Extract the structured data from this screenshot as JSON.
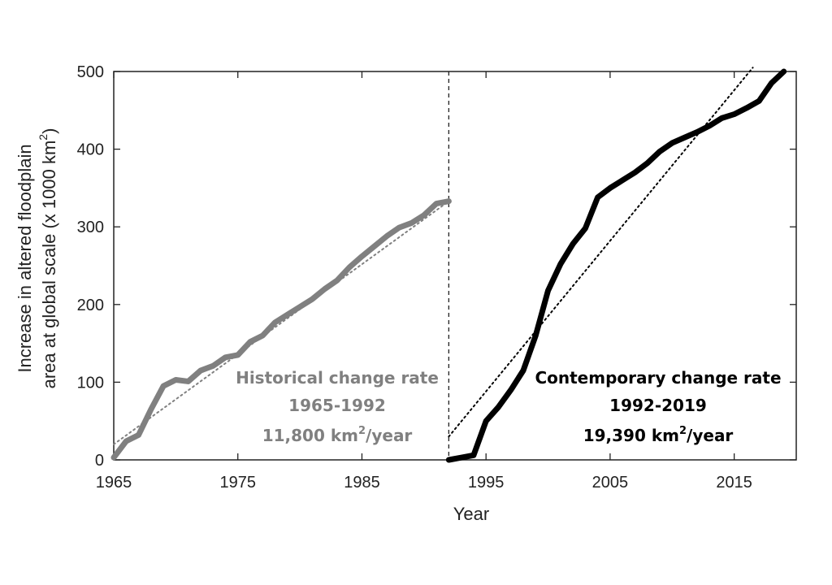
{
  "chart_data": {
    "type": "line",
    "xlabel": "Year",
    "ylabel_lines": [
      "Increase in altered floodplain",
      "area at global scale (x 1000 km"
    ],
    "ylabel_sup": "2",
    "ylabel_close": ")",
    "xlim": [
      1965,
      2020
    ],
    "ylim": [
      0,
      500
    ],
    "x_ticks": [
      1965,
      1975,
      1985,
      1995,
      2005,
      2015
    ],
    "y_ticks": [
      0,
      100,
      200,
      300,
      400,
      500
    ],
    "grid": false,
    "divider_year": 1992,
    "colors": {
      "historical": "#808080",
      "contemporary": "#000000"
    },
    "series": [
      {
        "key": "historical",
        "x": [
          1965,
          1966,
          1967,
          1968,
          1969,
          1970,
          1971,
          1972,
          1973,
          1974,
          1975,
          1976,
          1977,
          1978,
          1979,
          1980,
          1981,
          1982,
          1983,
          1984,
          1985,
          1986,
          1987,
          1988,
          1989,
          1990,
          1991,
          1992
        ],
        "y": [
          3,
          24,
          32,
          65,
          95,
          103,
          101,
          115,
          121,
          132,
          135,
          152,
          160,
          177,
          187,
          197,
          207,
          220,
          231,
          248,
          262,
          275,
          288,
          299,
          305,
          315,
          330,
          333
        ]
      },
      {
        "key": "contemporary",
        "x": [
          1992,
          1993,
          1994,
          1995,
          1996,
          1997,
          1998,
          1999,
          2000,
          2001,
          2002,
          2003,
          2004,
          2005,
          2006,
          2007,
          2008,
          2009,
          2010,
          2011,
          2012,
          2013,
          2014,
          2015,
          2016,
          2017,
          2018,
          2019
        ],
        "y": [
          0,
          3,
          6,
          50,
          68,
          90,
          115,
          160,
          218,
          252,
          278,
          298,
          338,
          350,
          360,
          370,
          382,
          397,
          408,
          415,
          422,
          430,
          440,
          445,
          453,
          462,
          485,
          500
        ]
      }
    ],
    "trend_lines": [
      {
        "key": "historical",
        "x": [
          1965,
          1992
        ],
        "y": [
          20,
          333
        ]
      },
      {
        "key": "contemporary",
        "x": [
          1992,
          2016.5
        ],
        "y": [
          30,
          505
        ]
      }
    ],
    "annotations": [
      {
        "key": "historical",
        "line1": "Historical change rate",
        "line2": "1965-1992",
        "line3_prefix": "11,800 km",
        "line3_sup": "2",
        "line3_suffix": "/year"
      },
      {
        "key": "contemporary",
        "line1": "Contemporary change rate",
        "line2": "1992-2019",
        "line3_prefix": "19,390 km",
        "line3_sup": "2",
        "line3_suffix": "/year"
      }
    ]
  }
}
